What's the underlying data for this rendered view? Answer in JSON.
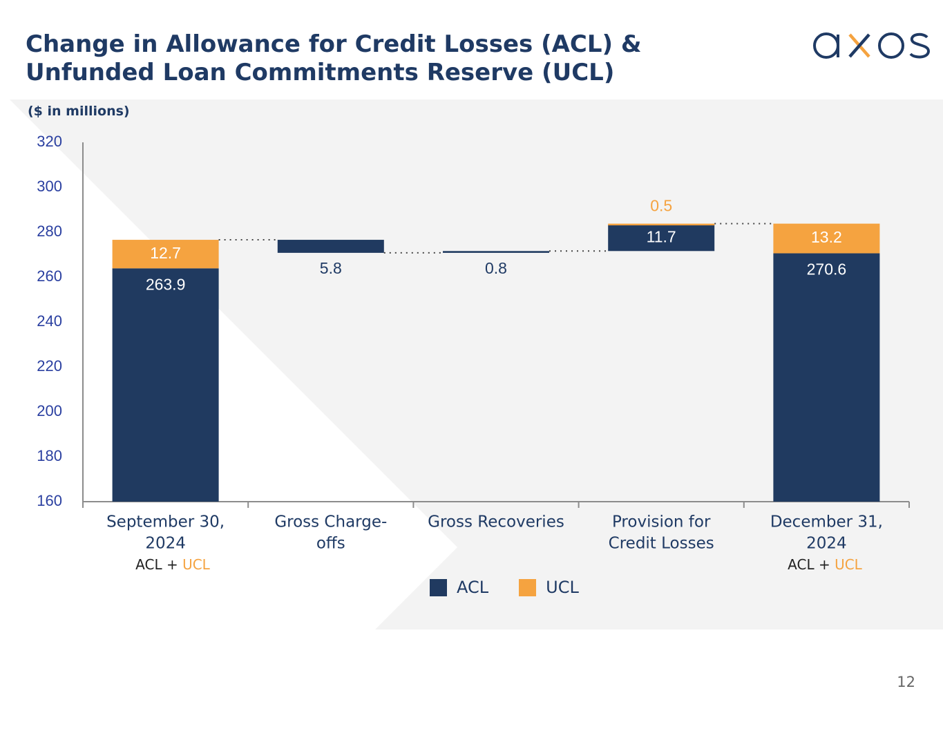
{
  "slide": {
    "title_line1": "Change in Allowance for Credit Losses (ACL) &",
    "title_line2": "Unfunded Loan Commitments Reserve (UCL)",
    "units": "($ in millions)",
    "page_number": "12",
    "logo_text": "axos",
    "colors": {
      "title": "#1f3a64",
      "acl": "#203a60",
      "ucl": "#f5a340",
      "axis_labels": "#2a3fa0"
    }
  },
  "chart_data": {
    "type": "bar",
    "subtype": "waterfall",
    "title": "Change in Allowance for Credit Losses (ACL) & Unfunded Loan Commitments Reserve (UCL)",
    "ylabel": "($ in millions)",
    "ylim": [
      160,
      320
    ],
    "yticks": [
      "160",
      "180",
      "200",
      "220",
      "240",
      "260",
      "280",
      "300",
      "320"
    ],
    "categories": [
      [
        "September 30,",
        "2024"
      ],
      [
        "Gross Charge-",
        "offs"
      ],
      [
        "Gross Recoveries"
      ],
      [
        "Provision for",
        "Credit Losses"
      ],
      [
        "December 31,",
        "2024"
      ]
    ],
    "bars": [
      {
        "kind": "total",
        "acl": 263.9,
        "ucl": 12.7,
        "acl_label": "263.9",
        "ucl_label": "12.7"
      },
      {
        "kind": "delta",
        "series": "ACL",
        "from": 276.6,
        "to": 270.8,
        "label": "5.8"
      },
      {
        "kind": "delta",
        "series": "ACL",
        "from": 270.8,
        "to": 271.6,
        "label": "0.8"
      },
      {
        "kind": "delta",
        "series": "ACL",
        "from": 271.6,
        "to": 283.3,
        "label": "11.7",
        "ucl_from": 283.3,
        "ucl_to": 283.8,
        "ucl_label": "0.5"
      },
      {
        "kind": "total",
        "acl": 270.6,
        "ucl": 13.2,
        "acl_label": "270.6",
        "ucl_label": "13.2"
      }
    ],
    "sublabels": {
      "acl": "ACL",
      "plus": " + ",
      "ucl": "UCL"
    },
    "legend": [
      {
        "name": "ACL",
        "color": "#203a60"
      },
      {
        "name": "UCL",
        "color": "#f5a340"
      }
    ]
  }
}
